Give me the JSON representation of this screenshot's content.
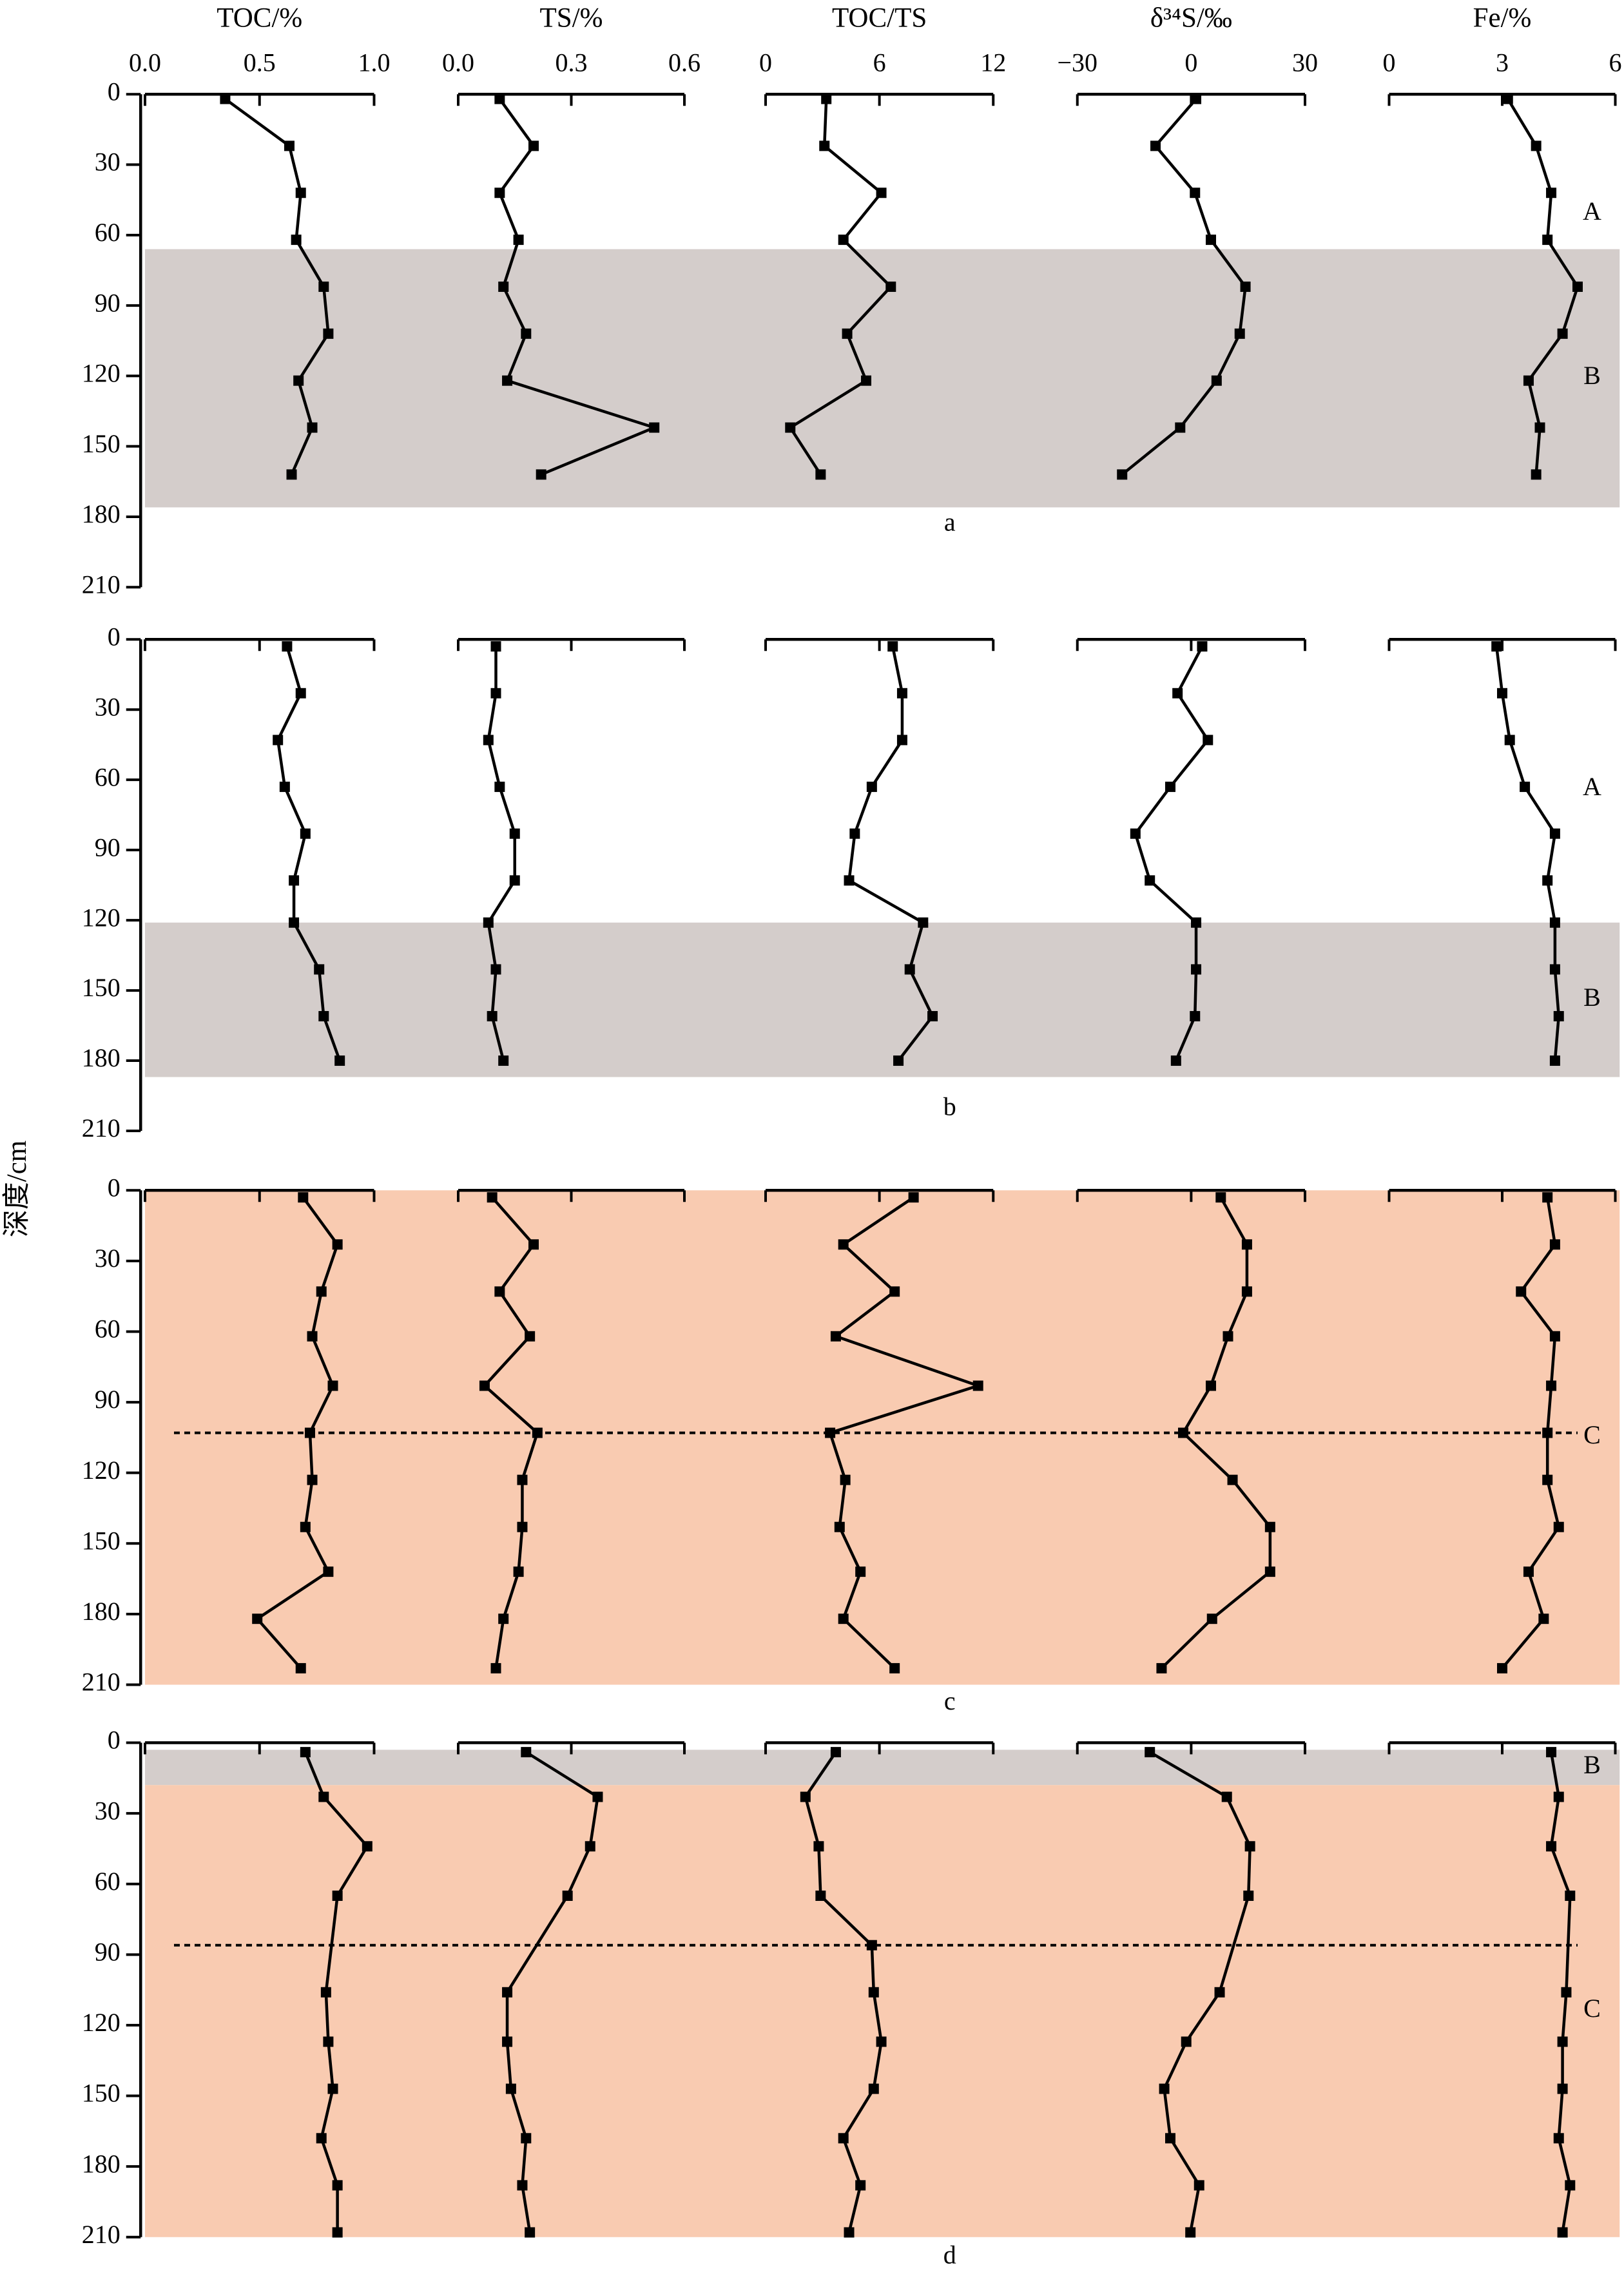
{
  "chart_data": {
    "type": "line",
    "ylabel": "深度/cm",
    "color": "#000000",
    "ylim": [
      0,
      210
    ],
    "yticks": [
      0,
      30,
      60,
      90,
      120,
      150,
      180,
      210
    ],
    "tracks": [
      {
        "name": "TOC/%",
        "xlim": [
          0,
          1
        ],
        "xticks": [
          {
            "value": 0,
            "label": "0.0"
          },
          {
            "value": 0.5,
            "label": "0.5"
          },
          {
            "value": 1,
            "label": "1.0"
          }
        ]
      },
      {
        "name": "TS/%",
        "xlim": [
          0,
          0.6
        ],
        "xticks": [
          {
            "value": 0,
            "label": "0.0"
          },
          {
            "value": 0.3,
            "label": "0.3"
          },
          {
            "value": 0.6,
            "label": "0.6"
          }
        ]
      },
      {
        "name": "TOC/TS",
        "xlim": [
          0,
          12
        ],
        "xticks": [
          0,
          6,
          12
        ]
      },
      {
        "name": "δ³⁴S/‰",
        "xlim": [
          -30,
          30
        ],
        "xticks": [
          {
            "value": -30,
            "label": "−30"
          },
          0,
          30
        ]
      },
      {
        "name": "Fe/%",
        "xlim": [
          0,
          6
        ],
        "xticks": [
          0,
          3,
          6
        ]
      }
    ],
    "panels": [
      {
        "label": "a",
        "zones": [
          {
            "label": "A"
          },
          {
            "label": "B",
            "from": 66,
            "to": 176,
            "color": "#d4cdcb"
          }
        ],
        "series": [
          {
            "depth": [
              2,
              22,
              42,
              62,
              82,
              102,
              122,
              142,
              162
            ],
            "values": [
              0.35,
              0.63,
              0.68,
              0.66,
              0.78,
              0.8,
              0.67,
              0.73,
              0.64
            ]
          },
          {
            "depth": [
              2,
              22,
              42,
              62,
              82,
              102,
              122,
              142,
              162
            ],
            "values": [
              0.11,
              0.2,
              0.11,
              0.16,
              0.12,
              0.18,
              0.13,
              0.52,
              0.22
            ]
          },
          {
            "depth": [
              2,
              22,
              42,
              62,
              82,
              102,
              122,
              142,
              162
            ],
            "values": [
              3.2,
              3.1,
              6.1,
              4.1,
              6.6,
              4.3,
              5.3,
              1.3,
              2.9
            ]
          },
          {
            "depth": [
              2,
              22,
              42,
              62,
              82,
              102,
              122,
              142,
              162
            ],
            "values": [
              1.3,
              -9.4,
              1,
              5.2,
              14.3,
              12.8,
              6.7,
              -2.9,
              -18.2
            ]
          },
          {
            "depth": [
              2,
              22,
              42,
              62,
              82,
              102,
              122,
              142,
              162
            ],
            "values": [
              3.15,
              3.9,
              4.3,
              4.2,
              5,
              4.6,
              3.7,
              4,
              3.9
            ]
          }
        ]
      },
      {
        "label": "b",
        "zones": [
          {
            "label": "A"
          },
          {
            "label": "B",
            "from": 121,
            "to": 187,
            "color": "#d4cdcb"
          }
        ],
        "series": [
          {
            "depth": [
              3,
              23,
              43,
              63,
              83,
              103,
              121,
              141,
              161,
              180
            ],
            "values": [
              0.62,
              0.68,
              0.58,
              0.61,
              0.7,
              0.65,
              0.65,
              0.76,
              0.78,
              0.85
            ]
          },
          {
            "depth": [
              3,
              23,
              43,
              63,
              83,
              103,
              121,
              141,
              161,
              180
            ],
            "values": [
              0.1,
              0.1,
              0.08,
              0.11,
              0.15,
              0.15,
              0.08,
              0.1,
              0.09,
              0.12
            ]
          },
          {
            "depth": [
              3,
              23,
              43,
              63,
              83,
              103,
              121,
              141,
              161,
              180
            ],
            "values": [
              6.7,
              7.2,
              7.2,
              5.6,
              4.7,
              4.4,
              8.3,
              7.6,
              8.8,
              7
            ]
          },
          {
            "depth": [
              3,
              23,
              43,
              63,
              83,
              103,
              121,
              141,
              161,
              180
            ],
            "values": [
              2.9,
              -3.6,
              4.4,
              -5.5,
              -14.7,
              -10.9,
              1.3,
              1.3,
              1,
              -4
            ]
          },
          {
            "depth": [
              3,
              23,
              43,
              63,
              83,
              103,
              121,
              141,
              161,
              180
            ],
            "values": [
              2.85,
              3.0,
              3.2,
              3.6,
              4.4,
              4.2,
              4.4,
              4.4,
              4.5,
              4.4
            ]
          }
        ]
      },
      {
        "label": "c",
        "zones": [
          {
            "label": "C",
            "from": 0,
            "to": 210,
            "color": "#f9cbb1"
          }
        ],
        "boundary": 103,
        "series": [
          {
            "depth": [
              3,
              23,
              43,
              62,
              83,
              103,
              123,
              143,
              162,
              182,
              203
            ],
            "values": [
              0.69,
              0.84,
              0.77,
              0.73,
              0.82,
              0.72,
              0.73,
              0.7,
              0.8,
              0.49,
              0.68
            ]
          },
          {
            "depth": [
              3,
              23,
              43,
              62,
              83,
              103,
              123,
              143,
              162,
              182,
              203
            ],
            "values": [
              0.09,
              0.2,
              0.11,
              0.19,
              0.07,
              0.21,
              0.17,
              0.17,
              0.16,
              0.12,
              0.1
            ]
          },
          {
            "depth": [
              3,
              23,
              43,
              62,
              83,
              103,
              123,
              143,
              162,
              182,
              203
            ],
            "values": [
              7.8,
              4.1,
              6.8,
              3.7,
              11.2,
              3.4,
              4.2,
              3.9,
              5,
              4.1,
              6.8
            ]
          },
          {
            "depth": [
              3,
              23,
              43,
              62,
              83,
              103,
              123,
              143,
              162,
              182,
              203
            ],
            "values": [
              7.8,
              14.7,
              14.7,
              9.7,
              5.2,
              -2.1,
              10.9,
              20.8,
              20.8,
              5.5,
              -7.8
            ]
          },
          {
            "depth": [
              3,
              23,
              43,
              62,
              83,
              103,
              123,
              143,
              162,
              182,
              203
            ],
            "values": [
              4.2,
              4.4,
              3.5,
              4.4,
              4.3,
              4.2,
              4.2,
              4.5,
              3.7,
              4.1,
              3
            ]
          }
        ]
      },
      {
        "label": "d",
        "zones": [
          {
            "label": "B",
            "from": 3,
            "to": 18,
            "color": "#d4cdcb"
          },
          {
            "label": "C",
            "from": 18,
            "to": 210,
            "color": "#f9cbb1"
          }
        ],
        "boundary": 86,
        "series": [
          {
            "depth": [
              4,
              23,
              44,
              65,
              106,
              127,
              147,
              168,
              188,
              208
            ],
            "values": [
              0.7,
              0.78,
              0.97,
              0.84,
              0.79,
              0.8,
              0.82,
              0.77,
              0.84,
              0.84
            ]
          },
          {
            "depth": [
              4,
              23,
              44,
              65,
              106,
              127,
              147,
              168,
              188,
              208
            ],
            "values": [
              0.18,
              0.37,
              0.35,
              0.29,
              0.13,
              0.13,
              0.14,
              0.18,
              0.17,
              0.19
            ]
          },
          {
            "depth": [
              4,
              23,
              44,
              65,
              86,
              106,
              127,
              147,
              168,
              188,
              208
            ],
            "values": [
              3.7,
              2.1,
              2.8,
              2.9,
              5.6,
              5.7,
              6.1,
              5.7,
              4.1,
              5,
              4.4
            ]
          },
          {
            "depth": [
              4,
              23,
              44,
              65,
              106,
              127,
              147,
              168,
              188,
              208
            ],
            "values": [
              -10.9,
              9.4,
              15.5,
              15.1,
              7.5,
              -1.3,
              -7.1,
              -5.5,
              2.1,
              -0.2
            ]
          },
          {
            "depth": [
              4,
              23,
              44,
              65,
              106,
              127,
              147,
              168,
              188,
              208
            ],
            "values": [
              4.3,
              4.5,
              4.3,
              4.8,
              4.7,
              4.6,
              4.6,
              4.5,
              4.8,
              4.6
            ]
          }
        ]
      }
    ]
  }
}
